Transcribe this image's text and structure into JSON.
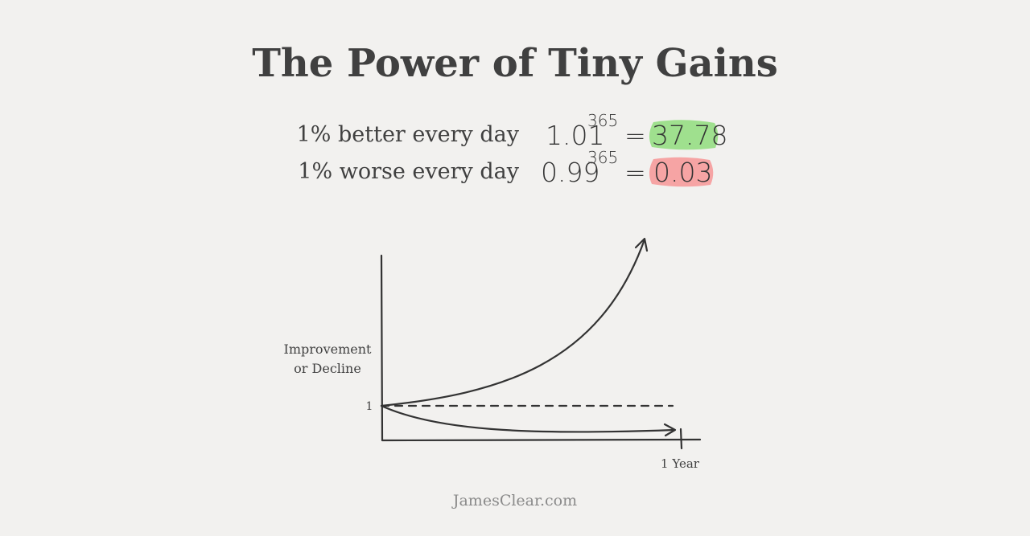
{
  "title": "The Power of Tiny Gains",
  "equations": [
    {
      "label": "1% better every day",
      "base": "1.01",
      "exponent": "365",
      "equals": "=",
      "result": "37.78"
    },
    {
      "label": "1% worse every day",
      "base": "0.99",
      "exponent": "365",
      "equals": "=",
      "result": "0.03"
    }
  ],
  "graph": {
    "y_label": [
      "Improvement",
      "or Decline"
    ],
    "baseline_label": "1",
    "x_label": "1 Year"
  },
  "footer": "JamesClear.com"
}
